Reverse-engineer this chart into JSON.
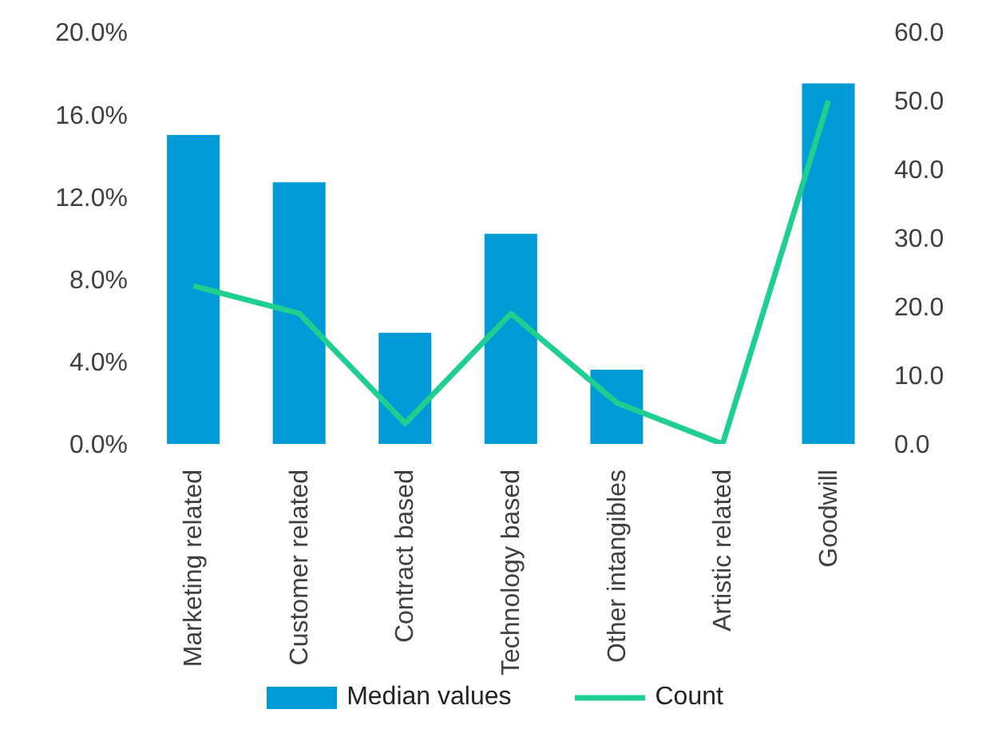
{
  "chart_data": {
    "type": "bar",
    "categories": [
      "Marketing related",
      "Customer related",
      "Contract based",
      "Technology based",
      "Other intangibles",
      "Artistic related",
      "Goodwill"
    ],
    "series": [
      {
        "name": "Median values",
        "color": "#009ad6",
        "values": [
          15.0,
          12.7,
          5.4,
          10.2,
          3.6,
          0,
          17.5
        ]
      },
      {
        "name": "Count",
        "type": "line",
        "axis": "y2",
        "color": "#1fcf8f",
        "values": [
          23,
          19,
          3,
          19,
          6,
          0,
          50
        ]
      }
    ],
    "ylim": [
      0,
      20
    ],
    "yticks": [
      {
        "value": 0,
        "label": "0.0%"
      },
      {
        "value": 4,
        "label": "4.0%"
      },
      {
        "value": 8,
        "label": "8.0%"
      },
      {
        "value": 12,
        "label": "12.0%"
      },
      {
        "value": 16,
        "label": "16.0%"
      },
      {
        "value": 20,
        "label": "20.0%"
      }
    ],
    "y2lim": [
      0,
      60
    ],
    "y2ticks": [
      {
        "value": 0,
        "label": "0.0"
      },
      {
        "value": 10,
        "label": "10.0"
      },
      {
        "value": 20,
        "label": "20.0"
      },
      {
        "value": 30,
        "label": "30.0"
      },
      {
        "value": 40,
        "label": "40.0"
      },
      {
        "value": 50,
        "label": "50.0"
      },
      {
        "value": 60,
        "label": "60.0"
      }
    ],
    "grid": false,
    "legend": "bottom",
    "marker": "none"
  }
}
